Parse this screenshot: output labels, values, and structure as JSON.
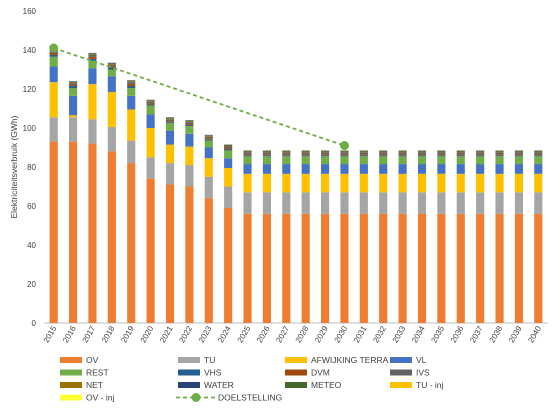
{
  "chart_data": {
    "type": "bar",
    "stacked": true,
    "title": "",
    "xlabel": "",
    "ylabel": "Elektriciteitsverbruik (GWh)",
    "ylim": [
      0,
      160
    ],
    "yticks": [
      0,
      20,
      40,
      60,
      80,
      100,
      120,
      140,
      160
    ],
    "grid": false,
    "legend_position": "bottom",
    "categories": [
      "2015",
      "2016",
      "2017",
      "2018",
      "2019",
      "2020",
      "2021",
      "2022",
      "2023",
      "2024",
      "2025",
      "2026",
      "2027",
      "2028",
      "2029",
      "2030",
      "2031",
      "2032",
      "2033",
      "2034",
      "2035",
      "2036",
      "2037",
      "2038",
      "2039",
      "2040"
    ],
    "series": [
      {
        "name": "OV",
        "color": "#ED7D31",
        "values": [
          93,
          93,
          92,
          88,
          82,
          74,
          71,
          70,
          64,
          59,
          56,
          56,
          56,
          56,
          56,
          56,
          56,
          56,
          56,
          56,
          56,
          56,
          56,
          56,
          56,
          56
        ]
      },
      {
        "name": "TU",
        "color": "#A5A5A5",
        "values": [
          12.5,
          12.5,
          12.5,
          12.5,
          11.5,
          11,
          11,
          11,
          11,
          11,
          11,
          11,
          11,
          11,
          11,
          11,
          11,
          11,
          11,
          11,
          11,
          11,
          11,
          11,
          11,
          11
        ]
      },
      {
        "name": "AFWIJKING TERRA",
        "color": "#FFC000",
        "values": [
          18,
          1,
          18,
          18,
          16,
          15,
          9.5,
          9.5,
          9.5,
          9.5,
          9.5,
          9.5,
          9.5,
          9.5,
          9.5,
          9.5,
          9.5,
          9.5,
          9.5,
          9.5,
          9.5,
          9.5,
          9.5,
          9.5,
          9.5,
          9.5
        ]
      },
      {
        "name": "VL",
        "color": "#4472C4",
        "values": [
          8,
          10,
          8,
          8,
          7,
          7,
          7,
          6.5,
          5.5,
          5,
          5,
          5,
          5,
          5,
          5,
          5,
          5,
          5,
          5,
          5,
          5,
          5,
          5,
          5,
          5,
          5
        ]
      },
      {
        "name": "REST",
        "color": "#70AD47",
        "values": [
          5,
          4,
          4,
          3.5,
          4,
          4.5,
          4,
          4,
          3.5,
          4,
          4,
          4,
          4,
          4,
          4,
          4,
          4,
          4,
          4,
          4,
          4,
          4,
          4,
          4,
          4,
          4
        ]
      },
      {
        "name": "VHS",
        "color": "#255E91",
        "values": [
          1,
          1,
          1,
          1,
          1,
          0.5,
          0.5,
          0.5,
          0.5,
          0.5,
          0.5,
          0.5,
          0.5,
          0.5,
          0.5,
          0.5,
          0.5,
          0.5,
          0.5,
          0.5,
          0.5,
          0.5,
          0.5,
          0.5,
          0.5,
          0.5
        ]
      },
      {
        "name": "DVM",
        "color": "#9E480E",
        "values": [
          1,
          0.5,
          1,
          0.5,
          1,
          0.5,
          0.5,
          0.5,
          0.5,
          0.5,
          0.5,
          0.5,
          0.5,
          0.5,
          0.5,
          0.5,
          0.5,
          0.5,
          0.5,
          0.5,
          0.5,
          0.5,
          0.5,
          0.5,
          0.5,
          0.5
        ]
      },
      {
        "name": "IVS",
        "color": "#636363",
        "values": [
          1.5,
          1,
          1,
          1,
          1,
          1,
          1,
          1,
          1,
          1,
          1,
          1,
          1,
          1,
          1,
          1,
          1,
          1,
          1,
          1,
          1,
          1,
          1,
          1,
          1,
          1
        ]
      },
      {
        "name": "NET",
        "color": "#997300",
        "values": [
          0.5,
          0.5,
          0.5,
          0.5,
          0.5,
          0.5,
          0.5,
          0.5,
          0.5,
          0.5,
          0.5,
          0.5,
          0.5,
          0.5,
          0.5,
          0.5,
          0.5,
          0.5,
          0.5,
          0.5,
          0.5,
          0.5,
          0.5,
          0.5,
          0.5,
          0.5
        ]
      },
      {
        "name": "WATER",
        "color": "#264478",
        "values": [
          0.3,
          0.3,
          0.3,
          0.3,
          0.3,
          0.3,
          0.3,
          0.3,
          0.3,
          0.3,
          0.3,
          0.3,
          0.3,
          0.3,
          0.3,
          0.3,
          0.3,
          0.3,
          0.3,
          0.3,
          0.3,
          0.3,
          0.3,
          0.3,
          0.3,
          0.3
        ]
      },
      {
        "name": "METEO",
        "color": "#43682B",
        "values": [
          0.2,
          0.2,
          0.2,
          0.2,
          0.2,
          0.2,
          0.2,
          0.2,
          0.2,
          0.2,
          0.2,
          0.2,
          0.2,
          0.2,
          0.2,
          0.2,
          0.2,
          0.2,
          0.2,
          0.2,
          0.2,
          0.2,
          0.2,
          0.2,
          0.2,
          0.2
        ]
      },
      {
        "name": "TU - inj",
        "color": "#FFC000",
        "values": [
          0,
          0,
          0,
          0,
          0,
          0,
          0,
          0,
          0,
          0,
          0,
          0,
          0,
          0,
          0,
          0,
          0,
          0,
          0,
          0,
          0,
          0,
          0,
          0,
          0,
          0
        ]
      },
      {
        "name": "OV - inj",
        "color": "#FFFF33",
        "values": [
          0,
          0,
          0,
          0,
          0,
          0,
          0,
          0,
          0,
          0,
          0,
          0,
          0,
          0,
          0,
          0,
          0,
          0,
          0,
          0,
          0,
          0,
          0,
          0,
          0,
          0
        ]
      }
    ],
    "target_line": {
      "name": "DOELSTELLING",
      "color": "#70AD47",
      "style": "dashed",
      "points": [
        {
          "x": "2015",
          "y": 141
        },
        {
          "x": "2030",
          "y": 91
        }
      ]
    }
  }
}
